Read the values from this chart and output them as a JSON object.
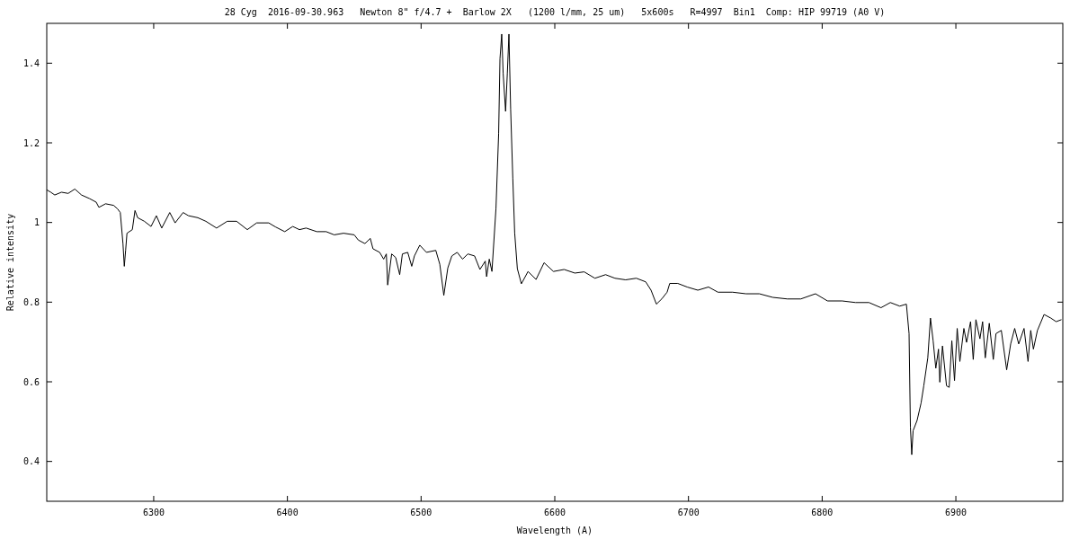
{
  "chart_data": {
    "type": "line",
    "title": "28 Cyg  2016-09-30.963   Newton 8\" f/4.7 +  Barlow 2X   (1200 l/mm, 25 um)   5x600s   R=4997  Bin1  Comp: HIP 99719 (A0 V)",
    "xlabel": "Wavelength (A)",
    "ylabel": "Relative intensity",
    "xlim": [
      6220,
      6980
    ],
    "xticks": [
      6300,
      6400,
      6500,
      6600,
      6700,
      6800,
      6900
    ],
    "ylim": [
      0.3,
      1.5
    ],
    "yticks": [
      {
        "value": 0.4,
        "label": "0.4"
      },
      {
        "value": 0.6,
        "label": "0.6"
      },
      {
        "value": 0.8,
        "label": "0.8"
      },
      {
        "value": 1,
        "label": "1"
      },
      {
        "value": 1.2,
        "label": "1.2"
      },
      {
        "value": 1.4,
        "label": "1.4"
      }
    ],
    "grid": false,
    "marker": "none",
    "line_style": "solid",
    "series": [
      {
        "color": "#000000",
        "x": [
          6220,
          6223,
          6226,
          6231,
          6236,
          6241,
          6246,
          6252,
          6257,
          6259,
          6264,
          6270,
          6273,
          6275,
          6277,
          6278,
          6279,
          6280,
          6284,
          6286,
          6288,
          6293,
          6298,
          6302,
          6306,
          6312,
          6316,
          6322,
          6326,
          6333,
          6339,
          6347,
          6355,
          6362,
          6370,
          6377,
          6386,
          6391,
          6398,
          6404,
          6409,
          6414,
          6422,
          6429,
          6435,
          6442,
          6450,
          6453,
          6458,
          6462,
          6464,
          6469,
          6472,
          6474,
          6475,
          6478,
          6481,
          6484,
          6486,
          6490,
          6493,
          6495,
          6499,
          6504,
          6511,
          6514,
          6517,
          6520,
          6523,
          6527,
          6531,
          6535,
          6540,
          6544,
          6548,
          6549,
          6551,
          6553,
          6556,
          6558,
          6559,
          6560.3,
          6561.4,
          6563.2,
          6564.5,
          6565.7,
          6567,
          6568.6,
          6570,
          6572,
          6575,
          6580,
          6586,
          6592,
          6599,
          6607,
          6615,
          6622,
          6630,
          6638,
          6645,
          6653,
          6661,
          6668,
          6672,
          6676,
          6680,
          6684,
          6686,
          6692,
          6699,
          6707,
          6715,
          6722,
          6733,
          6743,
          6753,
          6763,
          6774,
          6784,
          6795,
          6804,
          6815,
          6825,
          6835,
          6844,
          6851,
          6858,
          6863,
          6865,
          6866,
          6867,
          6868,
          6871,
          6874,
          6876,
          6879,
          6881,
          6883,
          6885,
          6887,
          6888,
          6890,
          6893,
          6895,
          6897,
          6899,
          6901,
          6903,
          6906,
          6908,
          6911,
          6913,
          6915,
          6918,
          6920,
          6922,
          6925,
          6928,
          6930,
          6934,
          6938,
          6941,
          6944,
          6947,
          6951,
          6954,
          6956,
          6958,
          6961,
          6966,
          6971,
          6975,
          6979
        ],
        "values": [
          1.082,
          1.076,
          1.069,
          1.076,
          1.073,
          1.084,
          1.069,
          1.06,
          1.051,
          1.038,
          1.047,
          1.043,
          1.034,
          1.025,
          0.947,
          0.89,
          0.93,
          0.973,
          0.982,
          1.03,
          1.012,
          1.003,
          0.99,
          1.017,
          0.986,
          1.025,
          0.999,
          1.025,
          1.017,
          1.012,
          1.003,
          0.986,
          1.003,
          1.003,
          0.982,
          0.999,
          0.999,
          0.989,
          0.977,
          0.99,
          0.982,
          0.986,
          0.977,
          0.977,
          0.969,
          0.973,
          0.969,
          0.956,
          0.947,
          0.96,
          0.934,
          0.925,
          0.908,
          0.921,
          0.843,
          0.921,
          0.912,
          0.869,
          0.921,
          0.925,
          0.89,
          0.916,
          0.943,
          0.925,
          0.93,
          0.895,
          0.817,
          0.886,
          0.916,
          0.925,
          0.908,
          0.921,
          0.916,
          0.882,
          0.903,
          0.864,
          0.908,
          0.877,
          1.035,
          1.223,
          1.411,
          1.473,
          1.374,
          1.279,
          1.374,
          1.473,
          1.284,
          1.11,
          0.974,
          0.884,
          0.846,
          0.877,
          0.857,
          0.899,
          0.877,
          0.882,
          0.873,
          0.876,
          0.86,
          0.869,
          0.86,
          0.856,
          0.86,
          0.851,
          0.83,
          0.795,
          0.808,
          0.825,
          0.847,
          0.847,
          0.838,
          0.83,
          0.838,
          0.825,
          0.825,
          0.821,
          0.821,
          0.812,
          0.808,
          0.808,
          0.821,
          0.803,
          0.803,
          0.799,
          0.799,
          0.786,
          0.799,
          0.79,
          0.795,
          0.721,
          0.486,
          0.417,
          0.477,
          0.503,
          0.547,
          0.59,
          0.66,
          0.76,
          0.703,
          0.634,
          0.682,
          0.599,
          0.69,
          0.59,
          0.586,
          0.703,
          0.603,
          0.734,
          0.651,
          0.734,
          0.699,
          0.751,
          0.656,
          0.756,
          0.708,
          0.751,
          0.66,
          0.747,
          0.656,
          0.721,
          0.729,
          0.63,
          0.695,
          0.734,
          0.695,
          0.734,
          0.651,
          0.729,
          0.682,
          0.729,
          0.769,
          0.76,
          0.751,
          0.756
        ]
      }
    ]
  }
}
